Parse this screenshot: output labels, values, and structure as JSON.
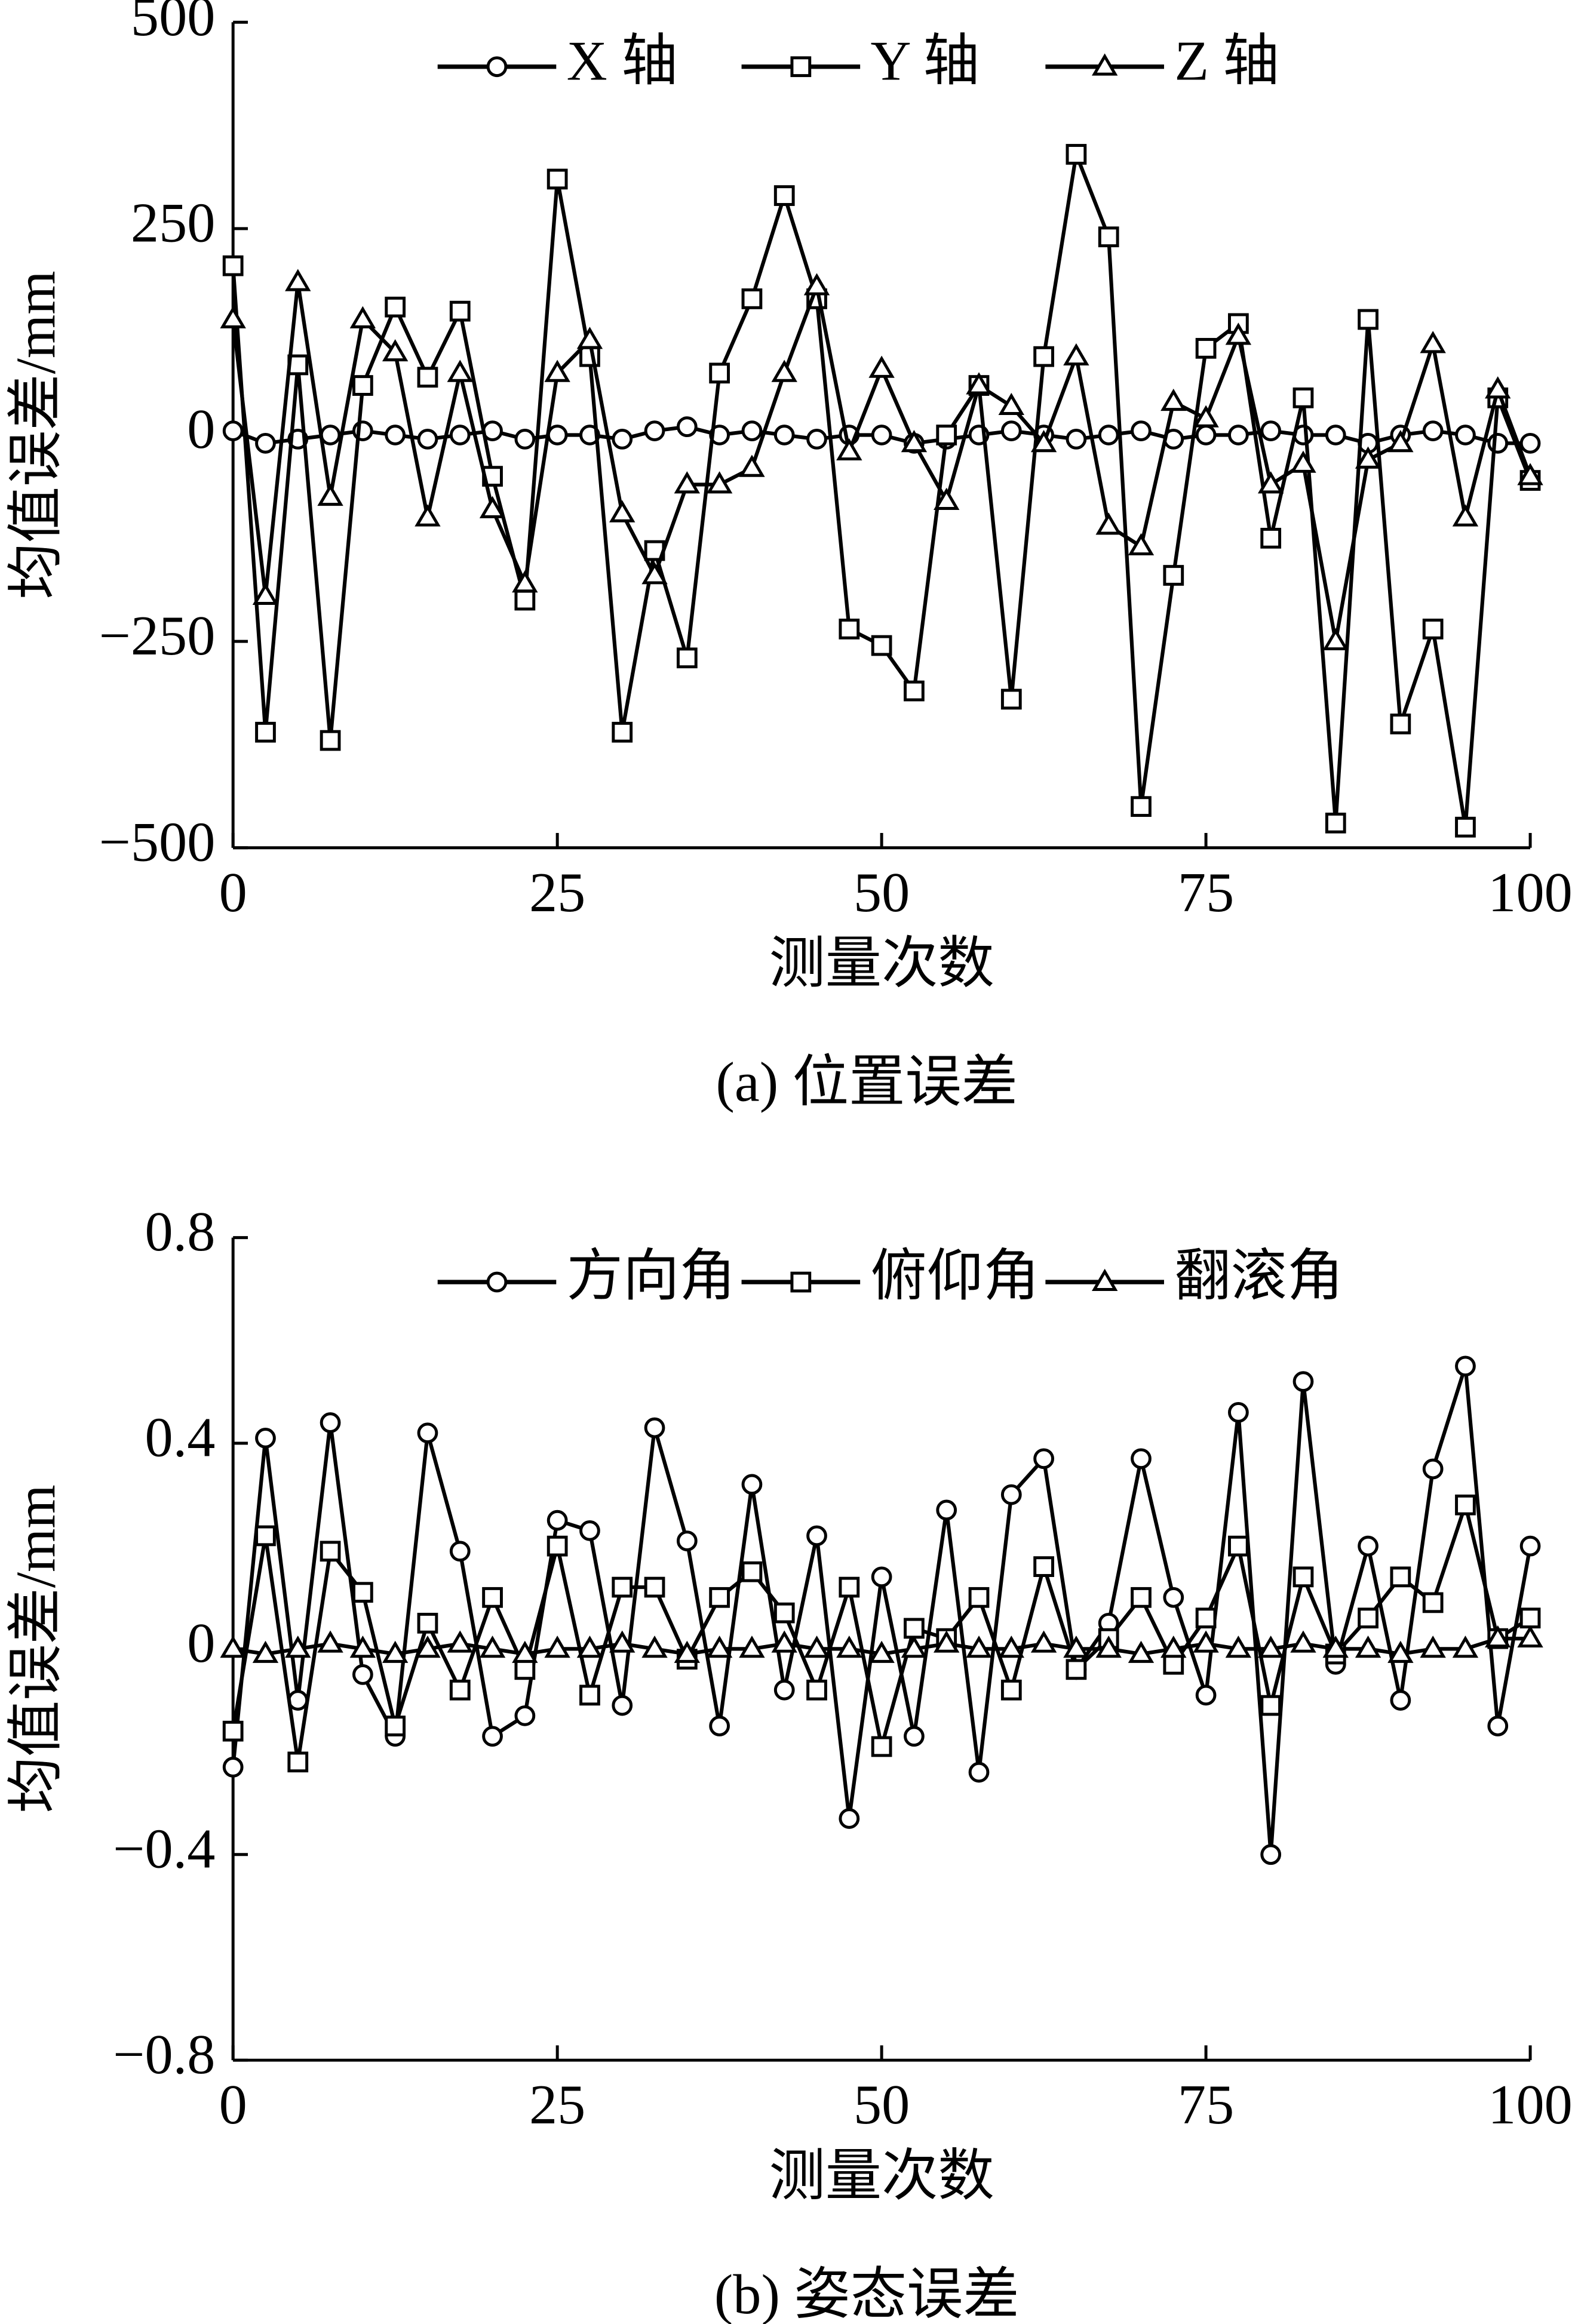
{
  "chart_data": [
    {
      "type": "line",
      "title": "(a)  位置误差",
      "x_label": "测量次数",
      "y_label": "均值误差/mm",
      "x": [
        0,
        2.5,
        5,
        7.5,
        10,
        12.5,
        15,
        17.5,
        20,
        22.5,
        25,
        27.5,
        30,
        32.5,
        35,
        37.5,
        40,
        42.5,
        45,
        47.5,
        50,
        52.5,
        55,
        57.5,
        60,
        62.5,
        65,
        67.5,
        70,
        72.5,
        75,
        77.5,
        80,
        82.5,
        85,
        87.5,
        90,
        92.5,
        95,
        97.5,
        100
      ],
      "xlim": [
        0,
        100
      ],
      "xticks": [
        0,
        25,
        50,
        75,
        100
      ],
      "ylim": [
        -500,
        500
      ],
      "yticks": [
        500,
        250,
        0,
        {
          "value": -250,
          "label": "−250"
        },
        {
          "value": -500,
          "label": "−500"
        }
      ],
      "legend": "top",
      "series": [
        {
          "name": "X 轴",
          "color": "#000000",
          "marker": "circle",
          "values": [
            5,
            -10,
            -5,
            0,
            5,
            0,
            -5,
            0,
            5,
            -5,
            0,
            0,
            -5,
            5,
            10,
            0,
            5,
            0,
            -5,
            0,
            0,
            -10,
            -5,
            0,
            5,
            0,
            -5,
            0,
            5,
            -5,
            0,
            0,
            5,
            0,
            0,
            -10,
            0,
            5,
            0,
            -10,
            -10
          ]
        },
        {
          "name": "Y 轴",
          "color": "#000000",
          "marker": "square",
          "values": [
            205,
            -360,
            85,
            -370,
            60,
            155,
            70,
            150,
            -50,
            -200,
            310,
            95,
            -360,
            -140,
            -270,
            75,
            165,
            290,
            165,
            -235,
            -255,
            -310,
            0,
            60,
            -320,
            95,
            340,
            240,
            -450,
            -170,
            105,
            135,
            -125,
            45,
            -470,
            140,
            -350,
            -235,
            -475,
            45,
            -55
          ]
        },
        {
          "name": "Z 轴",
          "color": "#000000",
          "marker": "triangle",
          "values": [
            140,
            -195,
            185,
            -75,
            140,
            100,
            -100,
            75,
            -90,
            -180,
            75,
            115,
            -95,
            -170,
            -60,
            -60,
            -40,
            75,
            180,
            -20,
            80,
            -10,
            -80,
            60,
            35,
            -10,
            95,
            -110,
            -135,
            40,
            20,
            120,
            -60,
            -35,
            -250,
            -30,
            -10,
            110,
            -100,
            55,
            -50
          ]
        }
      ]
    },
    {
      "type": "line",
      "title": "(b)  姿态误差",
      "x_label": "测量次数",
      "y_label": "均值误差/mm",
      "x": [
        0,
        2.5,
        5,
        7.5,
        10,
        12.5,
        15,
        17.5,
        20,
        22.5,
        25,
        27.5,
        30,
        32.5,
        35,
        37.5,
        40,
        42.5,
        45,
        47.5,
        50,
        52.5,
        55,
        57.5,
        60,
        62.5,
        65,
        67.5,
        70,
        72.5,
        75,
        77.5,
        80,
        82.5,
        85,
        87.5,
        90,
        92.5,
        95,
        97.5,
        100
      ],
      "xlim": [
        0,
        100
      ],
      "xticks": [
        0,
        25,
        50,
        75,
        100
      ],
      "ylim": [
        -0.8,
        0.8
      ],
      "yticks": [
        0.8,
        0.4,
        0,
        {
          "value": -0.4,
          "label": "−0.4"
        },
        {
          "value": -0.8,
          "label": "−0.8"
        }
      ],
      "legend": "top",
      "series": [
        {
          "name": "方向角",
          "color": "#000000",
          "marker": "circle",
          "values": [
            -0.23,
            0.41,
            -0.1,
            0.44,
            -0.05,
            -0.17,
            0.42,
            0.19,
            -0.17,
            -0.13,
            0.25,
            0.23,
            -0.11,
            0.43,
            0.21,
            -0.15,
            0.32,
            -0.08,
            0.22,
            -0.33,
            0.14,
            -0.17,
            0.27,
            -0.24,
            0.3,
            0.37,
            -0.04,
            0.05,
            0.37,
            0.1,
            -0.09,
            0.46,
            -0.4,
            0.52,
            -0.03,
            0.2,
            -0.1,
            0.35,
            0.55,
            -0.15,
            0.2
          ]
        },
        {
          "name": "俯仰角",
          "color": "#000000",
          "marker": "square",
          "values": [
            -0.16,
            0.22,
            -0.22,
            0.19,
            0.11,
            -0.15,
            0.05,
            -0.08,
            0.1,
            -0.04,
            0.2,
            -0.09,
            0.12,
            0.12,
            -0.02,
            0.1,
            0.15,
            0.07,
            -0.08,
            0.12,
            -0.19,
            0.04,
            0.02,
            0.1,
            -0.08,
            0.16,
            -0.04,
            0.02,
            0.1,
            -0.03,
            0.06,
            0.2,
            -0.11,
            0.14,
            -0.01,
            0.06,
            0.14,
            0.09,
            0.28,
            0.02,
            0.06
          ]
        },
        {
          "name": "翻滚角",
          "color": "#000000",
          "marker": "triangle",
          "values": [
            0,
            -0.01,
            0,
            0.01,
            0,
            -0.01,
            0,
            0.01,
            0,
            -0.01,
            0,
            0,
            0.01,
            0,
            -0.01,
            0,
            0,
            0.01,
            0,
            0,
            -0.01,
            0,
            0.01,
            0,
            0,
            0.01,
            0,
            0,
            -0.01,
            0,
            0.01,
            0,
            0,
            0.01,
            0,
            0,
            -0.01,
            0,
            0,
            0.02,
            0.02
          ]
        }
      ]
    }
  ]
}
